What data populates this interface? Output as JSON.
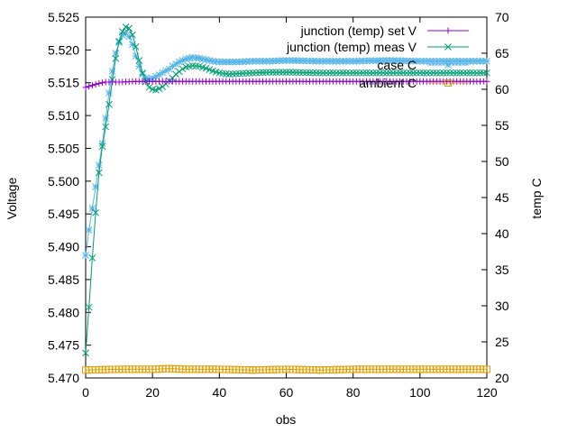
{
  "chart_data": {
    "type": "line",
    "xlabel": "obs",
    "ylabel": "Voltage",
    "y2label": "temp C",
    "xlim": [
      0,
      120
    ],
    "ylim": [
      5.47,
      5.525
    ],
    "y2lim": [
      20,
      70
    ],
    "xticks": [
      0,
      20,
      40,
      60,
      80,
      100,
      120
    ],
    "yticks": [
      "5.470",
      "5.475",
      "5.480",
      "5.485",
      "5.490",
      "5.495",
      "5.500",
      "5.505",
      "5.510",
      "5.515",
      "5.520",
      "5.525"
    ],
    "y2ticks": [
      20,
      25,
      30,
      35,
      40,
      45,
      50,
      55,
      60,
      65,
      70
    ],
    "grid": false,
    "legend_position": "top-right",
    "series": [
      {
        "name": "junction (temp) set  V",
        "axis": "y1",
        "color": "#9400d3",
        "marker": "plus",
        "x": [
          0,
          2,
          4,
          6,
          8,
          10,
          15,
          20,
          30,
          40,
          60,
          80,
          100,
          120
        ],
        "y": [
          5.5143,
          5.5146,
          5.5149,
          5.5151,
          5.5151,
          5.5151,
          5.5152,
          5.5152,
          5.5152,
          5.5152,
          5.5152,
          5.5152,
          5.5152,
          5.5152
        ]
      },
      {
        "name": "junction (temp) meas V",
        "axis": "y1",
        "color": "#009e73",
        "marker": "x",
        "x": [
          0,
          1,
          2,
          3,
          4,
          5,
          6,
          7,
          8,
          9,
          10,
          11,
          12,
          13,
          14,
          15,
          16,
          17,
          18,
          19,
          20,
          21,
          22,
          23,
          24,
          25,
          26,
          27,
          28,
          29,
          30,
          32,
          34,
          36,
          38,
          40,
          43,
          46,
          50,
          55,
          60,
          70,
          80,
          90,
          100,
          110,
          120
        ],
        "y": [
          5.4738,
          5.4808,
          5.4883,
          5.4952,
          5.5013,
          5.5053,
          5.5083,
          5.5117,
          5.5155,
          5.5187,
          5.5213,
          5.5228,
          5.5235,
          5.5233,
          5.5223,
          5.5205,
          5.5184,
          5.5165,
          5.5152,
          5.5143,
          5.514,
          5.5139,
          5.5141,
          5.5144,
          5.5148,
          5.5153,
          5.5157,
          5.5163,
          5.5167,
          5.5171,
          5.5174,
          5.5176,
          5.5175,
          5.5172,
          5.5168,
          5.5165,
          5.5163,
          5.5164,
          5.5165,
          5.5166,
          5.5166,
          5.5165,
          5.5165,
          5.5165,
          5.5165,
          5.5165,
          5.5165
        ]
      },
      {
        "name": "case C",
        "axis": "y2",
        "color": "#56b4e9",
        "marker": "star",
        "x": [
          0,
          1,
          2,
          3,
          4,
          5,
          6,
          7,
          8,
          9,
          10,
          11,
          12,
          13,
          14,
          15,
          16,
          17,
          18,
          19,
          20,
          21,
          22,
          23,
          24,
          25,
          26,
          27,
          28,
          29,
          30,
          32,
          34,
          36,
          38,
          40,
          43,
          46,
          50,
          55,
          60,
          70,
          80,
          90,
          100,
          110,
          120
        ],
        "y": [
          37,
          40.5,
          43.5,
          46.5,
          49.5,
          52.5,
          56,
          59.5,
          62.5,
          65,
          66.5,
          67.5,
          67.8,
          67.3,
          66.2,
          64.6,
          63.2,
          62.1,
          61.6,
          61.4,
          61.5,
          61.8,
          62,
          62.3,
          62.6,
          62.8,
          63.2,
          63.5,
          63.8,
          64,
          64.2,
          64.4,
          64.3,
          64.1,
          63.9,
          63.8,
          63.8,
          63.8,
          63.9,
          63.9,
          64,
          63.9,
          63.9,
          64,
          63.9,
          63.9,
          63.9
        ]
      },
      {
        "name": "ambient C",
        "axis": "y2",
        "color": "#e69f00",
        "marker": "square",
        "x": [
          0,
          10,
          20,
          25,
          30,
          40,
          50,
          60,
          70,
          80,
          90,
          100,
          110,
          120
        ],
        "y": [
          21.1,
          21.2,
          21.2,
          21.3,
          21.2,
          21.2,
          21.1,
          21.2,
          21.1,
          21.2,
          21.2,
          21.2,
          21.2,
          21.2
        ]
      }
    ]
  }
}
